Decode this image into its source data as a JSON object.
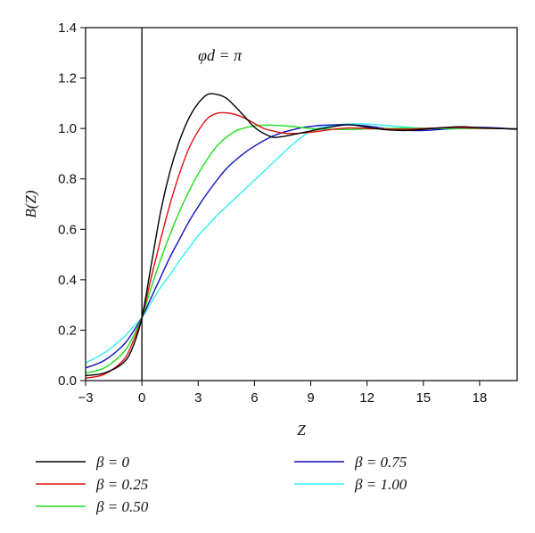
{
  "chart_data": {
    "type": "line",
    "title": "",
    "annotation": "φd = π",
    "xlabel": "Z",
    "ylabel": "B(Z)",
    "xlim": [
      -3,
      20
    ],
    "ylim": [
      0,
      1.4
    ],
    "xticks": [
      -3,
      0,
      3,
      6,
      9,
      12,
      15,
      18
    ],
    "yticks": [
      0.0,
      0.2,
      0.4,
      0.6,
      0.8,
      1.0,
      1.2,
      1.4
    ],
    "xtick_labels": [
      "−3",
      "0",
      "3",
      "6",
      "9",
      "12",
      "15",
      "18"
    ],
    "ytick_labels": [
      "0.0",
      "0.2",
      "0.4",
      "0.6",
      "0.8",
      "1.0",
      "1.2",
      "1.4"
    ],
    "vertical_line_x": 0,
    "grid": false,
    "legend_position": "below",
    "series": [
      {
        "name": "β = 0",
        "color": "#000000",
        "x": [
          -3,
          -2,
          -1,
          -0.5,
          0,
          0.5,
          1,
          1.5,
          2,
          2.5,
          3,
          3.5,
          4,
          4.5,
          5,
          5.5,
          6,
          6.5,
          7,
          7.5,
          8,
          9,
          10,
          11,
          12,
          13,
          14,
          15,
          16,
          17,
          18,
          19,
          20
        ],
        "y": [
          0.02,
          0.03,
          0.07,
          0.13,
          0.25,
          0.46,
          0.67,
          0.83,
          0.95,
          1.04,
          1.1,
          1.135,
          1.135,
          1.12,
          1.085,
          1.045,
          1.005,
          0.98,
          0.965,
          0.968,
          0.975,
          0.99,
          1.005,
          1.015,
          1.005,
          0.995,
          0.992,
          0.997,
          1.003,
          1.007,
          1.003,
          1.0,
          0.997
        ]
      },
      {
        "name": "β = 0.25",
        "color": "#e01010",
        "x": [
          -3,
          -2,
          -1,
          -0.5,
          0,
          0.5,
          1,
          1.5,
          2,
          2.5,
          3,
          3.5,
          4,
          4.5,
          5,
          5.5,
          6,
          6.5,
          7,
          7.5,
          8,
          9,
          10,
          11,
          12,
          13,
          14,
          15,
          16,
          17,
          18,
          19,
          20
        ],
        "y": [
          0.01,
          0.025,
          0.08,
          0.15,
          0.25,
          0.41,
          0.56,
          0.7,
          0.82,
          0.92,
          0.99,
          1.04,
          1.06,
          1.062,
          1.055,
          1.04,
          1.02,
          1.0,
          0.99,
          0.982,
          0.98,
          0.985,
          0.995,
          1.002,
          1.0,
          0.998,
          0.997,
          1.0,
          1.003,
          1.003,
          1.001,
          1.0,
          0.998
        ]
      },
      {
        "name": "β = 0.50",
        "color": "#20dd20",
        "x": [
          -3,
          -2,
          -1,
          -0.5,
          0,
          0.5,
          1,
          1.5,
          2,
          2.5,
          3,
          3.5,
          4,
          4.5,
          5,
          5.5,
          6,
          6.5,
          7,
          7.5,
          8,
          9,
          10,
          11,
          12,
          13,
          14,
          15,
          16,
          17,
          18,
          19,
          20
        ],
        "y": [
          0.03,
          0.05,
          0.11,
          0.17,
          0.25,
          0.37,
          0.48,
          0.58,
          0.67,
          0.75,
          0.82,
          0.88,
          0.93,
          0.965,
          0.99,
          1.003,
          1.01,
          1.013,
          1.013,
          1.011,
          1.008,
          1.0,
          0.997,
          0.996,
          0.998,
          1.0,
          1.001,
          1.001,
          1.0,
          1.0,
          1.0,
          1.0,
          0.998
        ]
      },
      {
        "name": "β = 0.75",
        "color": "#1010c0",
        "x": [
          -3,
          -2,
          -1,
          -0.5,
          0,
          0.5,
          1,
          1.5,
          2,
          2.5,
          3,
          3.5,
          4,
          4.5,
          5,
          5.5,
          6,
          6.5,
          7,
          7.5,
          8,
          8.5,
          9,
          9.5,
          10,
          10.5,
          11,
          12,
          13,
          14,
          15,
          16,
          17,
          18,
          19,
          20
        ],
        "y": [
          0.05,
          0.08,
          0.14,
          0.19,
          0.25,
          0.33,
          0.41,
          0.49,
          0.56,
          0.63,
          0.69,
          0.745,
          0.795,
          0.84,
          0.875,
          0.905,
          0.93,
          0.952,
          0.97,
          0.984,
          0.994,
          1.003,
          1.008,
          1.012,
          1.014,
          1.015,
          1.015,
          1.01,
          1.0,
          0.993,
          0.992,
          0.997,
          1.002,
          1.004,
          1.002,
          0.998
        ]
      },
      {
        "name": "β = 1.00",
        "color": "#33eeee",
        "x": [
          -3,
          -2,
          -1,
          -0.5,
          0,
          0.5,
          1,
          1.5,
          2,
          2.5,
          3,
          3.5,
          4,
          4.5,
          5,
          5.5,
          6,
          6.5,
          7,
          7.5,
          8,
          8.5,
          9,
          9.5,
          10,
          10.5,
          11,
          12,
          13,
          14,
          15,
          16,
          17,
          18,
          19,
          20
        ],
        "y": [
          0.07,
          0.11,
          0.17,
          0.21,
          0.25,
          0.31,
          0.37,
          0.42,
          0.475,
          0.525,
          0.575,
          0.615,
          0.655,
          0.69,
          0.725,
          0.76,
          0.795,
          0.83,
          0.865,
          0.9,
          0.935,
          0.965,
          0.99,
          1.003,
          1.01,
          1.015,
          1.018,
          1.018,
          1.012,
          1.006,
          1.0,
          0.998,
          0.999,
          1.0,
          1.0,
          1.0
        ]
      }
    ]
  }
}
